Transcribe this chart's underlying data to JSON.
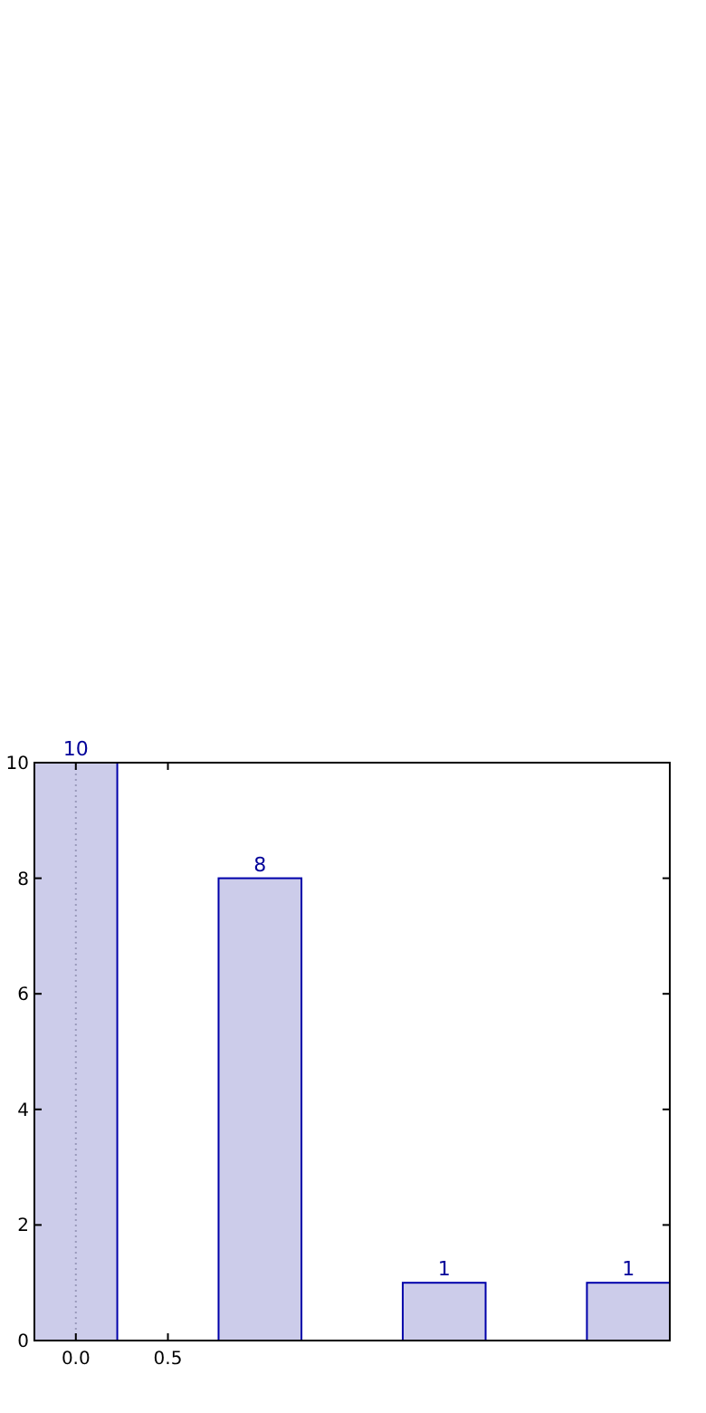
{
  "chart_data": {
    "type": "bar",
    "x": [
      0,
      1,
      2,
      3
    ],
    "values": [
      10,
      8,
      1,
      1
    ],
    "color": "#ccccea",
    "xlim": [
      -0.225,
      3.225
    ],
    "xticks": [
      {
        "value": 0,
        "label": "0.0"
      },
      {
        "value": 0.5,
        "label": "0.5"
      }
    ],
    "ylim": [
      0,
      10
    ],
    "yticks": [
      0,
      2,
      4,
      6,
      8,
      10
    ],
    "data_labels": true,
    "grid": false,
    "ref_lines": [
      {
        "axis": "x",
        "value": 0,
        "line_style": "dotted",
        "color": "#9999bb"
      }
    ]
  }
}
